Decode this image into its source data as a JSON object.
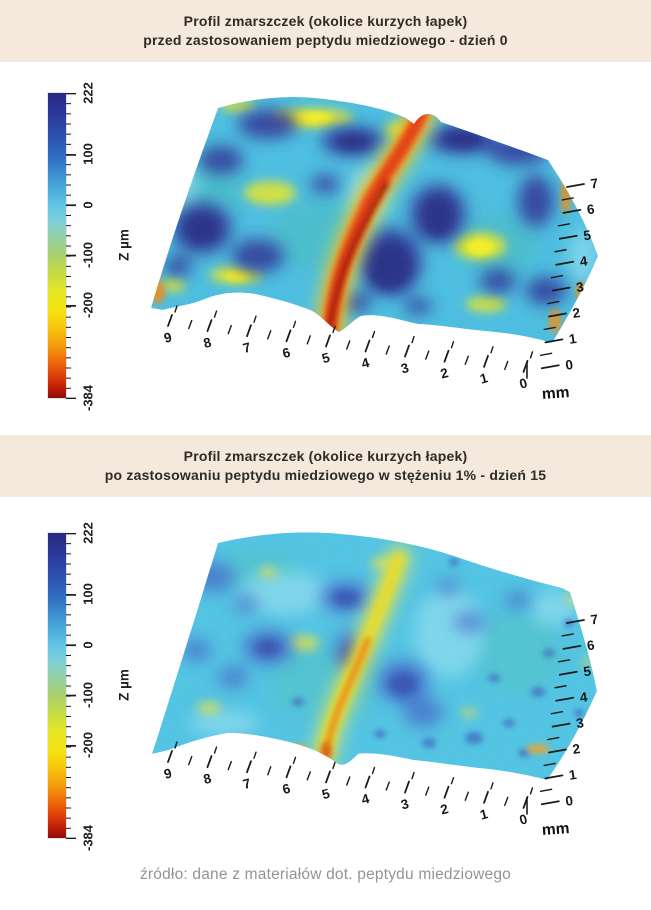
{
  "page": {
    "background": "#ffffff",
    "band_color": "#f4e9dc"
  },
  "header1": {
    "line1": "Profil zmarszczek (okolice kurzych łapek)",
    "line2": "przed zastosowaniem peptydu miedziowego - dzień 0"
  },
  "header2": {
    "line1": "Profil zmarszczek (okolice kurzych łapek)",
    "line2": "po zastosowaniu peptydu miedziowego w stężeniu 1% - dzień 15"
  },
  "footer": {
    "text": "źródło: dane z materiałów dot. peptydu miedziowego"
  },
  "colorbar": {
    "label": "Z µm",
    "max": 222,
    "min": -384,
    "ticks": [
      "222",
      "100",
      "0",
      "-100",
      "-200",
      "-384"
    ],
    "gradient": [
      {
        "pct": 0,
        "color": "#2a2a84"
      },
      {
        "pct": 6,
        "color": "#2b3596"
      },
      {
        "pct": 14,
        "color": "#2c4fae"
      },
      {
        "pct": 22,
        "color": "#3173c4"
      },
      {
        "pct": 30,
        "color": "#45a3d8"
      },
      {
        "pct": 37,
        "color": "#63c6e4"
      },
      {
        "pct": 42,
        "color": "#7fd0d8"
      },
      {
        "pct": 47,
        "color": "#93cfa8"
      },
      {
        "pct": 53,
        "color": "#a8d06e"
      },
      {
        "pct": 59,
        "color": "#c5da44"
      },
      {
        "pct": 65,
        "color": "#e6e726"
      },
      {
        "pct": 71,
        "color": "#f4e312"
      },
      {
        "pct": 77,
        "color": "#f8c60c"
      },
      {
        "pct": 83,
        "color": "#f49a0c"
      },
      {
        "pct": 88,
        "color": "#ee6a0a"
      },
      {
        "pct": 93,
        "color": "#dd3c0a"
      },
      {
        "pct": 97,
        "color": "#bc1a08"
      },
      {
        "pct": 100,
        "color": "#8c0f0b"
      }
    ]
  },
  "axes": {
    "x_ticks": [
      "9",
      "8",
      "7",
      "6",
      "5",
      "4",
      "3",
      "2",
      "1",
      "0"
    ],
    "y_ticks": [
      "7",
      "6",
      "5",
      "4",
      "3",
      "2",
      "1",
      "0"
    ],
    "unit_label": "mm"
  },
  "chart_data": [
    {
      "type": "heatmap",
      "render": "3d-surface-profilometry",
      "title": "Profil zmarszczek (okolice kurzych łapek) przed zastosowaniem peptydu miedziowego - dzień 0",
      "x_axis": {
        "label": "mm",
        "ticks": [
          9,
          8,
          7,
          6,
          5,
          4,
          3,
          2,
          1,
          0
        ]
      },
      "y_axis": {
        "label": "mm",
        "ticks": [
          7,
          6,
          5,
          4,
          3,
          2,
          1,
          0
        ]
      },
      "z_axis": {
        "label": "Z µm",
        "ticks": [
          222,
          100,
          0,
          -100,
          -200,
          -384
        ],
        "range": [
          -384,
          222
        ]
      },
      "colorbar_position": "left",
      "features": {
        "wrinkle_furrow": {
          "location_x_mm": 5,
          "orientation": "runs vertically across full y range",
          "depth_um": [
            -250,
            -384
          ],
          "color": "red to dark red"
        },
        "elevated_patches": {
          "height_um": [
            100,
            222
          ],
          "color": "dark blue",
          "coverage": "many large irregular blobs over whole surface"
        },
        "baseline_surface": {
          "height_um": [
            0,
            100
          ],
          "color": "cyan"
        },
        "depressions": {
          "depth_um": [
            -100,
            -200
          ],
          "color": "yellow-green streaks and edge fringes"
        }
      }
    },
    {
      "type": "heatmap",
      "render": "3d-surface-profilometry",
      "title": "Profil zmarszczek (okolice kurzych łapek) po zastosowaniu peptydu miedziowego w stężeniu 1% - dzień 15",
      "x_axis": {
        "label": "mm",
        "ticks": [
          9,
          8,
          7,
          6,
          5,
          4,
          3,
          2,
          1,
          0
        ]
      },
      "y_axis": {
        "label": "mm",
        "ticks": [
          7,
          6,
          5,
          4,
          3,
          2,
          1,
          0
        ]
      },
      "z_axis": {
        "label": "Z µm",
        "ticks": [
          222,
          100,
          0,
          -100,
          -200,
          -384
        ],
        "range": [
          -384,
          222
        ]
      },
      "colorbar_position": "left",
      "features": {
        "wrinkle_furrow": {
          "location_x_mm": 5,
          "orientation": "runs vertically across full y range",
          "depth_um": [
            -150,
            -250
          ],
          "color": "yellow with orange core — visibly shallower than day 0"
        },
        "elevated_patches": {
          "height_um": [
            50,
            150
          ],
          "color": "soft blue",
          "coverage": "fewer and smaller blobs"
        },
        "baseline_surface": {
          "height_um": [
            -50,
            50
          ],
          "color": "cyan, smoother overall texture"
        }
      }
    }
  ]
}
